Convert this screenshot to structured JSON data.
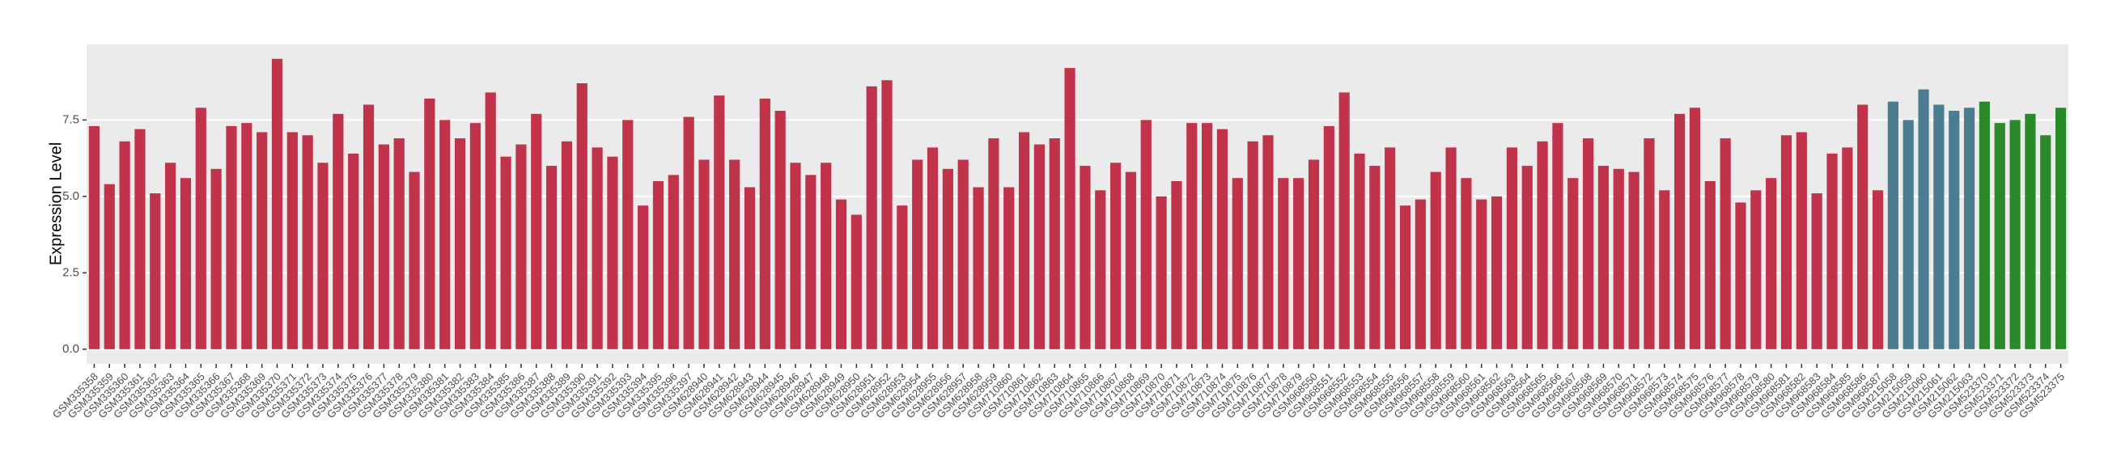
{
  "chart_data": {
    "type": "bar",
    "y_label": "Expression Level",
    "categories": [
      "GSM335358",
      "GSM335359",
      "GSM335360",
      "GSM335361",
      "GSM335362",
      "GSM335363",
      "GSM335364",
      "GSM335365",
      "GSM335366",
      "GSM335367",
      "GSM335368",
      "GSM335369",
      "GSM335370",
      "GSM335371",
      "GSM335372",
      "GSM335373",
      "GSM335374",
      "GSM335375",
      "GSM335376",
      "GSM335377",
      "GSM335378",
      "GSM335379",
      "GSM335380",
      "GSM335381",
      "GSM335382",
      "GSM335383",
      "GSM335384",
      "GSM335385",
      "GSM335386",
      "GSM335387",
      "GSM335388",
      "GSM335389",
      "GSM335390",
      "GSM335391",
      "GSM335392",
      "GSM335393",
      "GSM335394",
      "GSM335395",
      "GSM335396",
      "GSM335397",
      "GSM628940",
      "GSM628941",
      "GSM628942",
      "GSM628943",
      "GSM628944",
      "GSM628945",
      "GSM628946",
      "GSM628947",
      "GSM628948",
      "GSM628949",
      "GSM628950",
      "GSM628951",
      "GSM628952",
      "GSM628953",
      "GSM628954",
      "GSM628955",
      "GSM628956",
      "GSM628957",
      "GSM628958",
      "GSM628959",
      "GSM710860",
      "GSM710861",
      "GSM710862",
      "GSM710863",
      "GSM710864",
      "GSM710865",
      "GSM710866",
      "GSM710867",
      "GSM710868",
      "GSM710869",
      "GSM710870",
      "GSM710871",
      "GSM710872",
      "GSM710873",
      "GSM710874",
      "GSM710875",
      "GSM710876",
      "GSM710877",
      "GSM710878",
      "GSM710879",
      "GSM968550",
      "GSM968551",
      "GSM968552",
      "GSM968553",
      "GSM968554",
      "GSM968555",
      "GSM968556",
      "GSM968557",
      "GSM968558",
      "GSM968559",
      "GSM968560",
      "GSM968561",
      "GSM968562",
      "GSM968563",
      "GSM968564",
      "GSM968565",
      "GSM968566",
      "GSM968567",
      "GSM968568",
      "GSM968569",
      "GSM968570",
      "GSM968571",
      "GSM968572",
      "GSM968573",
      "GSM968574",
      "GSM968575",
      "GSM968576",
      "GSM968577",
      "GSM968578",
      "GSM968579",
      "GSM968580",
      "GSM968581",
      "GSM968582",
      "GSM968583",
      "GSM968584",
      "GSM968585",
      "GSM968586",
      "GSM968587",
      "GSM215058",
      "GSM215059",
      "GSM215060",
      "GSM215061",
      "GSM215062",
      "GSM215063",
      "GSM523370",
      "GSM523371",
      "GSM523372",
      "GSM523373",
      "GSM523374",
      "GSM523375"
    ],
    "values": [
      7.3,
      5.4,
      6.8,
      7.2,
      5.1,
      6.1,
      5.6,
      7.9,
      5.9,
      7.3,
      7.4,
      7.1,
      9.5,
      7.1,
      7.0,
      6.1,
      7.7,
      6.4,
      8.0,
      6.7,
      6.9,
      5.8,
      8.2,
      7.5,
      6.9,
      7.4,
      8.4,
      6.3,
      6.7,
      7.7,
      6.0,
      6.8,
      8.7,
      6.6,
      6.3,
      7.5,
      4.7,
      5.5,
      5.7,
      7.6,
      6.2,
      8.3,
      6.2,
      5.3,
      8.2,
      7.8,
      6.1,
      5.7,
      6.1,
      4.9,
      4.4,
      8.6,
      8.8,
      4.7,
      6.2,
      6.6,
      5.9,
      6.2,
      5.3,
      6.9,
      5.3,
      7.1,
      6.7,
      6.9,
      9.2,
      6.0,
      5.2,
      6.1,
      5.8,
      7.5,
      5.0,
      5.5,
      7.4,
      7.4,
      7.2,
      5.6,
      6.8,
      7.0,
      5.6,
      5.6,
      6.2,
      7.3,
      8.4,
      6.4,
      6.0,
      6.6,
      4.7,
      4.9,
      5.8,
      6.6,
      5.6,
      4.9,
      5.0,
      6.6,
      6.0,
      6.8,
      7.4,
      5.6,
      6.9,
      6.0,
      5.9,
      5.8,
      6.9,
      5.2,
      7.7,
      7.9,
      5.5,
      6.9,
      4.8,
      5.2,
      5.6,
      7.0,
      7.1,
      5.1,
      6.4,
      6.6,
      8.0,
      5.2,
      8.1,
      7.5,
      8.5,
      8.0,
      7.8,
      7.9,
      8.1,
      7.4,
      7.5,
      7.7,
      7.0,
      7.9
    ],
    "colors": [
      "#c1334a",
      "#c1334a",
      "#c1334a",
      "#c1334a",
      "#c1334a",
      "#c1334a",
      "#c1334a",
      "#c1334a",
      "#c1334a",
      "#c1334a",
      "#c1334a",
      "#c1334a",
      "#c1334a",
      "#c1334a",
      "#c1334a",
      "#c1334a",
      "#c1334a",
      "#c1334a",
      "#c1334a",
      "#c1334a",
      "#c1334a",
      "#c1334a",
      "#c1334a",
      "#c1334a",
      "#c1334a",
      "#c1334a",
      "#c1334a",
      "#c1334a",
      "#c1334a",
      "#c1334a",
      "#c1334a",
      "#c1334a",
      "#c1334a",
      "#c1334a",
      "#c1334a",
      "#c1334a",
      "#c1334a",
      "#c1334a",
      "#c1334a",
      "#c1334a",
      "#c1334a",
      "#c1334a",
      "#c1334a",
      "#c1334a",
      "#c1334a",
      "#c1334a",
      "#c1334a",
      "#c1334a",
      "#c1334a",
      "#c1334a",
      "#c1334a",
      "#c1334a",
      "#c1334a",
      "#c1334a",
      "#c1334a",
      "#c1334a",
      "#c1334a",
      "#c1334a",
      "#c1334a",
      "#c1334a",
      "#c1334a",
      "#c1334a",
      "#c1334a",
      "#c1334a",
      "#c1334a",
      "#c1334a",
      "#c1334a",
      "#c1334a",
      "#c1334a",
      "#c1334a",
      "#c1334a",
      "#c1334a",
      "#c1334a",
      "#c1334a",
      "#c1334a",
      "#c1334a",
      "#c1334a",
      "#c1334a",
      "#c1334a",
      "#c1334a",
      "#c1334a",
      "#c1334a",
      "#c1334a",
      "#c1334a",
      "#c1334a",
      "#c1334a",
      "#c1334a",
      "#c1334a",
      "#c1334a",
      "#c1334a",
      "#c1334a",
      "#c1334a",
      "#c1334a",
      "#c1334a",
      "#c1334a",
      "#c1334a",
      "#c1334a",
      "#c1334a",
      "#c1334a",
      "#c1334a",
      "#c1334a",
      "#c1334a",
      "#c1334a",
      "#c1334a",
      "#c1334a",
      "#c1334a",
      "#c1334a",
      "#c1334a",
      "#c1334a",
      "#c1334a",
      "#c1334a",
      "#c1334a",
      "#c1334a",
      "#c1334a",
      "#c1334a",
      "#c1334a",
      "#c1334a",
      "#c1334a",
      "#4a7d8f",
      "#4a7d8f",
      "#4a7d8f",
      "#4a7d8f",
      "#4a7d8f",
      "#4a7d8f",
      "#2a8a2a",
      "#2a8a2a",
      "#2a8a2a",
      "#2a8a2a",
      "#2a8a2a",
      "#2a8a2a"
    ],
    "ylim": [
      -0.48,
      9.97
    ],
    "yticks": [
      {
        "value": 0,
        "label": "0.0"
      },
      2.5,
      {
        "value": 5,
        "label": "5.0"
      },
      7.5
    ],
    "grid": true,
    "background": "#ebebeb"
  }
}
